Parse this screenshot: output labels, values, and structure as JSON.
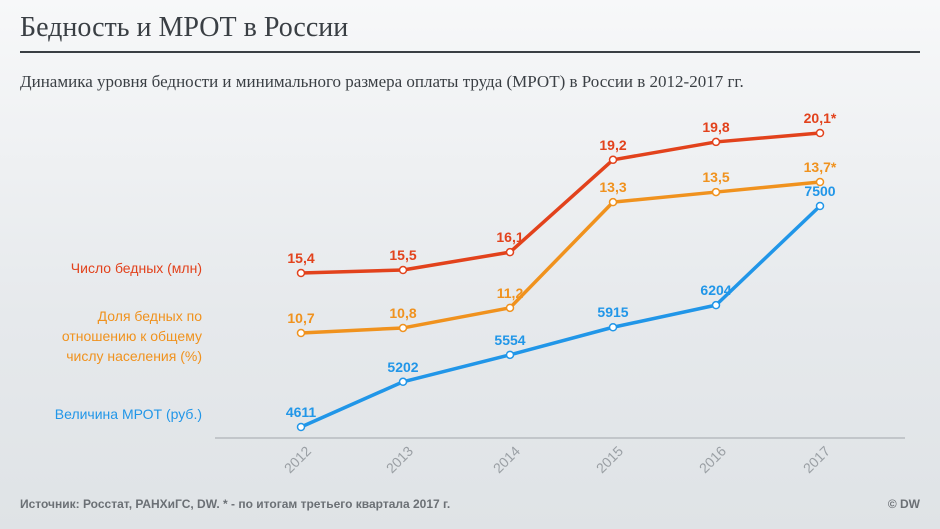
{
  "title": "Бедность и МРОТ в России",
  "subtitle": "Динамика уровня бедности и минимального размера оплаты труда (МРОТ) в России в 2012-2017 гг.",
  "footer": {
    "source": "Источник: Росстат, РАНХиГС, DW.  * - по итогам третьего квартала 2017 г.",
    "credit": "© DW"
  },
  "colors": {
    "poor_count": "#e2421c",
    "poor_share": "#f0921e",
    "mrot": "#2196e8",
    "axis": "#b8bcc0",
    "year_label": "#9a9fa4"
  },
  "chart_data": {
    "type": "line",
    "x": [
      "2012",
      "2013",
      "2014",
      "2015",
      "2016",
      "2017"
    ],
    "series": [
      {
        "name": "Число бедных (млн)",
        "color": "#e2421c",
        "values": [
          15.4,
          15.5,
          16.1,
          19.2,
          19.8,
          20.1
        ],
        "labels": [
          "15,4",
          "15,5",
          "16,1",
          "19,2",
          "19,8",
          "20,1*"
        ]
      },
      {
        "name": "Доля бедных по отношению к общему числу населения (%)",
        "name_lines": [
          "Доля бедных по",
          "отношению к общему",
          "числу населения (%)"
        ],
        "color": "#f0921e",
        "values": [
          10.7,
          10.8,
          11.2,
          13.3,
          13.5,
          13.7
        ],
        "labels": [
          "10,7",
          "10,8",
          "11,2",
          "13,3",
          "13,5",
          "13,7*"
        ]
      },
      {
        "name": "Величина МРОТ (руб.)",
        "color": "#2196e8",
        "values": [
          4611,
          5202,
          5554,
          5915,
          6204,
          7500
        ],
        "labels": [
          "4611",
          "5202",
          "5554",
          "5915",
          "6204",
          "7500"
        ]
      }
    ]
  }
}
